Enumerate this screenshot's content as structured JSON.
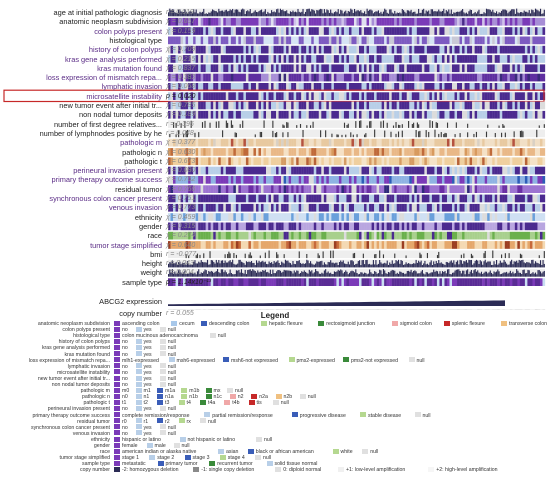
{
  "chart_data": {
    "type": "heatmap",
    "highlight_color": "#c62828",
    "tracks": [
      {
        "label": "age at initial pathologic diagnosis",
        "stat": "r = 0.019",
        "style": "bars",
        "color": "#2b2b55"
      },
      {
        "label": "anatomic neoplasm subdivision",
        "stat": "χ = 0.657",
        "style": "cat",
        "palette": [
          "#a78ed6",
          "#7b3ab8",
          "#cfc2ea",
          "#4a2a8a",
          "#e0dff0"
        ]
      },
      {
        "label": "colon polyps present",
        "stat": "χ = 0.159",
        "style": "cat",
        "palette": [
          "#b8cfe8",
          "#4b2a8f",
          "#dcdcdc"
        ]
      },
      {
        "label": "histological type",
        "stat": "",
        "style": "cat",
        "palette": [
          "#d6e4f4",
          "#7d5bc1",
          "#c9c9d6"
        ]
      },
      {
        "label": "history of colon polyps",
        "stat": "χ = 0.709",
        "style": "cat",
        "palette": [
          "#b8cfe8",
          "#4b2a8f",
          "#dcdcdc"
        ]
      },
      {
        "label": "kras gene analysis performed",
        "stat": "χ = 0.215",
        "style": "cat",
        "palette": [
          "#b8cfe8",
          "#4b2a8f",
          "#dcdcdc"
        ]
      },
      {
        "label": "kras mutation found",
        "stat": "χ = 0.837",
        "style": "cat",
        "palette": [
          "#b8cfe8",
          "#4b2a8f",
          "#dcdcdc"
        ]
      },
      {
        "label": "loss expression of mismatch repa...",
        "stat": "χ = 0.383",
        "style": "cat",
        "palette": [
          "#a78ed6",
          "#5f2fa0",
          "#dcdcdc",
          "#3a2a7a"
        ]
      },
      {
        "label": "lymphatic invasion",
        "stat": "χ = 0.068",
        "style": "cat",
        "palette": [
          "#b8cfe8",
          "#4b2a8f",
          "#dcdcdc"
        ]
      },
      {
        "label": "microsatellite instability",
        "stat": "p = 0.020",
        "style": "cat",
        "highlight": true,
        "palette": [
          "#b8cfe8",
          "#4b2a8f",
          "#dcdcdc"
        ]
      },
      {
        "label": "new tumor event after initial tr...",
        "stat": "χ = 0.785",
        "style": "cat",
        "palette": [
          "#b8cfe8",
          "#4b2a8f",
          "#dcdcdc"
        ]
      },
      {
        "label": "non nodal tumor deposits",
        "stat": "χ = 0.189",
        "style": "cat",
        "palette": [
          "#b8cfe8",
          "#4b2a8f",
          "#dcdcdc"
        ]
      },
      {
        "label": "number of first degree relatives...",
        "stat": "r = 0.396",
        "style": "sparse",
        "color": "#3a3a3a"
      },
      {
        "label": "number of lymphnodes positive by he",
        "stat": "r = 0.048",
        "style": "sparse",
        "color": "#3a3a3a"
      },
      {
        "label": "pathologic m",
        "stat": "χ = 0.377",
        "style": "cat",
        "palette": [
          "#f1dfc6",
          "#e8c9a0",
          "#b5523f",
          "#d9d0c4"
        ]
      },
      {
        "label": "pathologic n",
        "stat": "χ = 0.630",
        "style": "cat",
        "palette": [
          "#f5e1c6",
          "#e9b887",
          "#d89a5e",
          "#c06a3a"
        ]
      },
      {
        "label": "pathologic t",
        "stat": "χ = 0.673",
        "style": "cat",
        "palette": [
          "#f5e3c8",
          "#efcf9e",
          "#d59b63",
          "#b86237"
        ]
      },
      {
        "label": "perineural invasion present",
        "stat": "χ = 0.080",
        "style": "cat",
        "palette": [
          "#b8cfe8",
          "#4b2a8f",
          "#dcdcdc"
        ]
      },
      {
        "label": "primary therapy outcome success",
        "stat": "χ = 0.762",
        "style": "cat",
        "palette": [
          "#7b3ab8",
          "#8fb3e3",
          "#2d5db8",
          "#dcdcdc"
        ]
      },
      {
        "label": "residual tumor",
        "stat": "χ = 0.766",
        "style": "cat",
        "palette": [
          "#6a2fa4",
          "#9d74d1",
          "#2f2a7a",
          "#dcdcdc"
        ]
      },
      {
        "label": "synchronous colon cancer present",
        "stat": "χ = 0.751",
        "style": "cat",
        "palette": [
          "#b8cfe8",
          "#4b2a8f",
          "#dcdcdc"
        ]
      },
      {
        "label": "venous invasion",
        "stat": "χ = 0.773",
        "style": "cat",
        "palette": [
          "#b8cfe8",
          "#4b2a8f",
          "#dcdcdc"
        ]
      },
      {
        "label": "ethnicity",
        "stat": "χ = 0.459",
        "style": "cat",
        "palette": [
          "#6aa0db",
          "#cfe0f3",
          "#dcdcdc"
        ]
      },
      {
        "label": "gender",
        "stat": "χ = 0.315",
        "style": "cat",
        "palette": [
          "#4b2a8f",
          "#b9a6e0"
        ]
      },
      {
        "label": "race",
        "stat": "χ = 0.274",
        "style": "cat",
        "palette": [
          "#6ab04c",
          "#a8d08d",
          "#4b2a8f",
          "#dcdcdc"
        ]
      },
      {
        "label": "tumor stage simplified",
        "stat": "χ = 0.640",
        "style": "cat",
        "palette": [
          "#f4d9b3",
          "#e5a76b",
          "#c7693a",
          "#9c3e22"
        ]
      },
      {
        "label": "bmi",
        "stat": "r = -0.077",
        "style": "sparse",
        "color": "#3a3a3a"
      },
      {
        "label": "height",
        "stat": "r = 0.043",
        "style": "bars",
        "color": "#2b2b55"
      },
      {
        "label": "weight",
        "stat": "r = 0.004",
        "style": "bars",
        "color": "#2b2b55"
      },
      {
        "label": "sample type",
        "stat": "p = 1.14x10⁻¹³",
        "style": "cat",
        "palette": [
          "#7b3ab8",
          "#5a2c95",
          "#c9dff2"
        ]
      }
    ],
    "gene_track": {
      "label": "ABCG2 expression",
      "style": "area",
      "color": "#2b2b55"
    },
    "copy_number_track": {
      "label": "copy number",
      "stat": "r = 0.055",
      "style": "cat",
      "palette": [
        "#e6e6e6",
        "#d0d0d0",
        "#bdbdbd"
      ]
    }
  },
  "legend": {
    "title": "Legend",
    "rows": [
      {
        "label": "anatomic neoplasm subdivision",
        "items": [
          {
            "text": "ascending colon",
            "color": "#7b3ab8"
          },
          {
            "text": "cecum",
            "color": "#a8c8ea"
          },
          {
            "text": "descending colon",
            "color": "#3a5db8"
          },
          {
            "text": "hepatic flexure",
            "color": "#b5d890"
          },
          {
            "text": "rectosigmoid junction",
            "color": "#3a8a3a"
          },
          {
            "text": "sigmoid colon",
            "color": "#f0a8a8"
          },
          {
            "text": "splenic flexure",
            "color": "#c62828"
          },
          {
            "text": "transverse colon",
            "color": "#f0c080"
          },
          {
            "text": "null",
            "color": "#e0e0e0"
          }
        ]
      },
      {
        "label": "colon polyps present",
        "items": [
          {
            "text": "no",
            "color": "#7b3ab8"
          },
          {
            "text": "yes",
            "color": "#b8cfe8"
          },
          {
            "text": "null",
            "color": "#e0e0e0"
          }
        ]
      },
      {
        "label": "histological type",
        "items": [
          {
            "text": "colon mucinous adenocarcinoma",
            "color": "#7b3ab8"
          },
          {
            "text": "null",
            "color": "#e0e0e0"
          }
        ]
      },
      {
        "label": "history of colon polyps",
        "items": [
          {
            "text": "no",
            "color": "#7b3ab8"
          },
          {
            "text": "yes",
            "color": "#b8cfe8"
          },
          {
            "text": "null",
            "color": "#e0e0e0"
          }
        ]
      },
      {
        "label": "kras gene analysis performed",
        "items": [
          {
            "text": "no",
            "color": "#7b3ab8"
          },
          {
            "text": "yes",
            "color": "#b8cfe8"
          },
          {
            "text": "null",
            "color": "#e0e0e0"
          }
        ]
      },
      {
        "label": "kras mutation found",
        "items": [
          {
            "text": "no",
            "color": "#7b3ab8"
          },
          {
            "text": "yes",
            "color": "#b8cfe8"
          },
          {
            "text": "null",
            "color": "#e0e0e0"
          }
        ]
      },
      {
        "label": "loss expression of mismatch repa...",
        "items": [
          {
            "text": "mlh1-expressed",
            "color": "#7b3ab8"
          },
          {
            "text": "msh6-expressed",
            "color": "#b8cfe8"
          },
          {
            "text": "msh6-not expressed",
            "color": "#3a5db8"
          },
          {
            "text": "pms2-expressed",
            "color": "#b5d890"
          },
          {
            "text": "pms2-not expressed",
            "color": "#3a8a3a"
          },
          {
            "text": "null",
            "color": "#e0e0e0"
          }
        ]
      },
      {
        "label": "lymphatic invasion",
        "items": [
          {
            "text": "no",
            "color": "#7b3ab8"
          },
          {
            "text": "yes",
            "color": "#b8cfe8"
          },
          {
            "text": "null",
            "color": "#e0e0e0"
          }
        ]
      },
      {
        "label": "microsatellite instability",
        "items": [
          {
            "text": "no",
            "color": "#7b3ab8"
          },
          {
            "text": "yes",
            "color": "#b8cfe8"
          },
          {
            "text": "null",
            "color": "#e0e0e0"
          }
        ]
      },
      {
        "label": "new tumor event after initial tr...",
        "items": [
          {
            "text": "no",
            "color": "#7b3ab8"
          },
          {
            "text": "yes",
            "color": "#b8cfe8"
          },
          {
            "text": "null",
            "color": "#e0e0e0"
          }
        ]
      },
      {
        "label": "non nodal tumor deposits",
        "items": [
          {
            "text": "no",
            "color": "#7b3ab8"
          },
          {
            "text": "yes",
            "color": "#b8cfe8"
          },
          {
            "text": "null",
            "color": "#e0e0e0"
          }
        ]
      },
      {
        "label": "pathologic m",
        "items": [
          {
            "text": "m0",
            "color": "#7b3ab8"
          },
          {
            "text": "m1",
            "color": "#b8cfe8"
          },
          {
            "text": "m1a",
            "color": "#3a5db8"
          },
          {
            "text": "m1b",
            "color": "#b5d890"
          },
          {
            "text": "mx",
            "color": "#3a8a3a"
          },
          {
            "text": "null",
            "color": "#e0e0e0"
          }
        ]
      },
      {
        "label": "pathologic n",
        "items": [
          {
            "text": "n0",
            "color": "#7b3ab8"
          },
          {
            "text": "n1",
            "color": "#b8cfe8"
          },
          {
            "text": "n1a",
            "color": "#3a5db8"
          },
          {
            "text": "n1b",
            "color": "#b5d890"
          },
          {
            "text": "n1c",
            "color": "#3a8a3a"
          },
          {
            "text": "n2",
            "color": "#f0a8a8"
          },
          {
            "text": "n2a",
            "color": "#c62828"
          },
          {
            "text": "n2b",
            "color": "#f0c080"
          },
          {
            "text": "null",
            "color": "#e0e0e0"
          }
        ]
      },
      {
        "label": "pathologic t",
        "items": [
          {
            "text": "t1",
            "color": "#7b3ab8"
          },
          {
            "text": "t2",
            "color": "#b8cfe8"
          },
          {
            "text": "t3",
            "color": "#3a5db8"
          },
          {
            "text": "t4",
            "color": "#b5d890"
          },
          {
            "text": "t4a",
            "color": "#3a8a3a"
          },
          {
            "text": "t4b",
            "color": "#f0a8a8"
          },
          {
            "text": "tis",
            "color": "#c62828"
          },
          {
            "text": "null",
            "color": "#e0e0e0"
          }
        ]
      },
      {
        "label": "perineural invasion present",
        "items": [
          {
            "text": "no",
            "color": "#7b3ab8"
          },
          {
            "text": "yes",
            "color": "#b8cfe8"
          },
          {
            "text": "null",
            "color": "#e0e0e0"
          }
        ]
      },
      {
        "label": "primary therapy outcome success",
        "items": [
          {
            "text": "complete remission/response",
            "color": "#7b3ab8"
          },
          {
            "text": "partial remission/response",
            "color": "#b8cfe8"
          },
          {
            "text": "progressive disease",
            "color": "#3a5db8"
          },
          {
            "text": "stable disease",
            "color": "#b5d890"
          },
          {
            "text": "null",
            "color": "#e0e0e0"
          }
        ]
      },
      {
        "label": "residual tumor",
        "items": [
          {
            "text": "r0",
            "color": "#7b3ab8"
          },
          {
            "text": "r1",
            "color": "#b8cfe8"
          },
          {
            "text": "r2",
            "color": "#3a5db8"
          },
          {
            "text": "rx",
            "color": "#b5d890"
          },
          {
            "text": "null",
            "color": "#e0e0e0"
          }
        ]
      },
      {
        "label": "synchronous colon cancer present",
        "items": [
          {
            "text": "no",
            "color": "#7b3ab8"
          },
          {
            "text": "yes",
            "color": "#b8cfe8"
          },
          {
            "text": "null",
            "color": "#e0e0e0"
          }
        ]
      },
      {
        "label": "venous invasion",
        "items": [
          {
            "text": "no",
            "color": "#7b3ab8"
          },
          {
            "text": "yes",
            "color": "#b8cfe8"
          },
          {
            "text": "null",
            "color": "#e0e0e0"
          }
        ]
      },
      {
        "label": "ethnicity",
        "items": [
          {
            "text": "hispanic or latino",
            "color": "#7b3ab8"
          },
          {
            "text": "not hispanic or latino",
            "color": "#b8cfe8"
          },
          {
            "text": "null",
            "color": "#e0e0e0"
          }
        ]
      },
      {
        "label": "gender",
        "items": [
          {
            "text": "female",
            "color": "#7b3ab8"
          },
          {
            "text": "male",
            "color": "#b8cfe8"
          },
          {
            "text": "null",
            "color": "#e0e0e0"
          }
        ]
      },
      {
        "label": "race",
        "items": [
          {
            "text": "american indian or alaska native",
            "color": "#7b3ab8"
          },
          {
            "text": "asian",
            "color": "#b8cfe8"
          },
          {
            "text": "black or african american",
            "color": "#3a5db8"
          },
          {
            "text": "white",
            "color": "#b5d890"
          },
          {
            "text": "null",
            "color": "#e0e0e0"
          }
        ]
      },
      {
        "label": "tumor stage simplified",
        "items": [
          {
            "text": "stage 1",
            "color": "#7b3ab8"
          },
          {
            "text": "stage 2",
            "color": "#b8cfe8"
          },
          {
            "text": "stage 3",
            "color": "#3a5db8"
          },
          {
            "text": "stage 4",
            "color": "#b5d890"
          },
          {
            "text": "null",
            "color": "#e0e0e0"
          }
        ]
      },
      {
        "label": "sample type",
        "items": [
          {
            "text": "metastatic",
            "color": "#7b3ab8"
          },
          {
            "text": "primary tumor",
            "color": "#3a5db8"
          },
          {
            "text": "recurrent tumor",
            "color": "#3a8a3a"
          },
          {
            "text": "solid tissue normal",
            "color": "#b8cfe8"
          }
        ]
      },
      {
        "label": "copy number",
        "items": [
          {
            "text": "-2: homozygous deletion",
            "color": "#2b2b55"
          },
          {
            "text": "-1: single copy deletion",
            "color": "#8a8a8a"
          },
          {
            "text": "0: diploid normal",
            "color": "#e0e0e0"
          },
          {
            "text": "+1: low-level amplification",
            "color": "#f0f0f0"
          },
          {
            "text": "+2: high-level amplification",
            "color": "#f6f6f6"
          }
        ]
      }
    ]
  }
}
